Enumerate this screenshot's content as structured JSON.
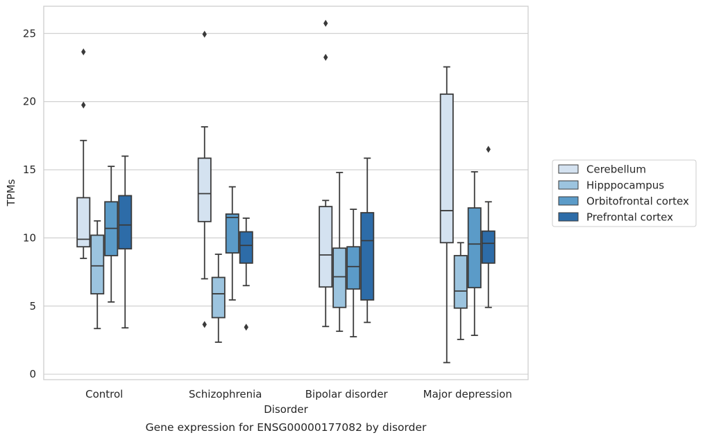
{
  "chart_data": {
    "type": "box",
    "caption": "Gene expression for ENSG00000177082 by disorder",
    "xlabel": "Disorder",
    "ylabel": "TPMs",
    "ylim": [
      -0.4,
      27.0
    ],
    "yticks": [
      0,
      5,
      10,
      15,
      20,
      25
    ],
    "ytick_labels": [
      "0",
      "5",
      "10",
      "15",
      "20",
      "25"
    ],
    "categories": [
      "Control",
      "Schizophrenia",
      "Bipolar disorder",
      "Major depression"
    ],
    "grid": "horizontal",
    "legend_position": "right",
    "series": [
      {
        "name": "Cerebellum",
        "color": "#d4e2f0",
        "boxes": [
          {
            "whislo": 8.5,
            "q1": 9.35,
            "med": 9.9,
            "q3": 12.95,
            "whishi": 17.15,
            "fliers": [
              19.75,
              23.65
            ]
          },
          {
            "whislo": 7.0,
            "q1": 11.2,
            "med": 13.25,
            "q3": 15.85,
            "whishi": 18.15,
            "fliers": [
              3.65,
              24.95
            ]
          },
          {
            "whislo": 3.5,
            "q1": 6.4,
            "med": 8.75,
            "q3": 12.3,
            "whishi": 12.75,
            "fliers": [
              23.25,
              25.75
            ]
          },
          {
            "whislo": 0.85,
            "q1": 9.65,
            "med": 12.0,
            "q3": 20.55,
            "whishi": 22.55,
            "fliers": []
          }
        ]
      },
      {
        "name": "Hipppocampus",
        "color": "#9cc4df",
        "boxes": [
          {
            "whislo": 3.35,
            "q1": 5.9,
            "med": 7.95,
            "q3": 10.2,
            "whishi": 11.25,
            "fliers": []
          },
          {
            "whislo": 2.35,
            "q1": 4.15,
            "med": 5.9,
            "q3": 7.1,
            "whishi": 8.8,
            "fliers": []
          },
          {
            "whislo": 3.15,
            "q1": 4.9,
            "med": 7.15,
            "q3": 9.25,
            "whishi": 14.8,
            "fliers": []
          },
          {
            "whislo": 2.55,
            "q1": 4.85,
            "med": 6.1,
            "q3": 8.7,
            "whishi": 9.65,
            "fliers": []
          }
        ]
      },
      {
        "name": "Orbitofrontal cortex",
        "color": "#5b9bc8",
        "boxes": [
          {
            "whislo": 5.3,
            "q1": 8.7,
            "med": 10.7,
            "q3": 12.65,
            "whishi": 15.25,
            "fliers": []
          },
          {
            "whislo": 5.45,
            "q1": 8.9,
            "med": 11.5,
            "q3": 11.75,
            "whishi": 13.75,
            "fliers": []
          },
          {
            "whislo": 2.75,
            "q1": 6.25,
            "med": 7.9,
            "q3": 9.35,
            "whishi": 12.1,
            "fliers": []
          },
          {
            "whislo": 2.85,
            "q1": 6.35,
            "med": 9.55,
            "q3": 12.2,
            "whishi": 14.85,
            "fliers": []
          }
        ]
      },
      {
        "name": "Prefrontal cortex",
        "color": "#2d6ca8",
        "boxes": [
          {
            "whislo": 3.4,
            "q1": 9.2,
            "med": 10.95,
            "q3": 13.1,
            "whishi": 16.0,
            "fliers": []
          },
          {
            "whislo": 6.5,
            "q1": 8.15,
            "med": 9.45,
            "q3": 10.45,
            "whishi": 11.45,
            "fliers": [
              3.45
            ]
          },
          {
            "whislo": 3.8,
            "q1": 5.45,
            "med": 9.8,
            "q3": 11.85,
            "whishi": 15.85,
            "fliers": []
          },
          {
            "whislo": 4.9,
            "q1": 8.15,
            "med": 9.6,
            "q3": 10.5,
            "whishi": 12.65,
            "fliers": [
              16.5
            ]
          }
        ]
      }
    ]
  }
}
